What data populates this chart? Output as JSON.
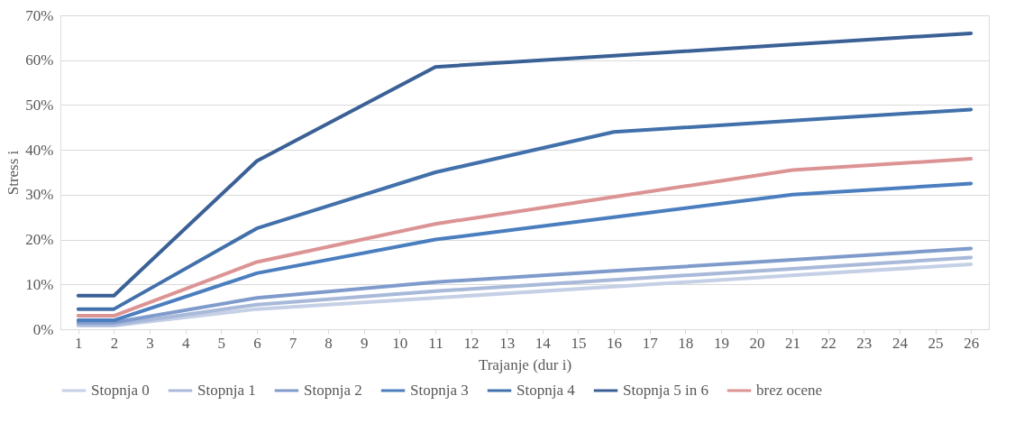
{
  "chart_data": {
    "type": "line",
    "xlabel": "Trajanje (dur i)",
    "ylabel": "Stress i",
    "x": [
      1,
      2,
      6,
      11,
      16,
      21,
      26
    ],
    "xlim": [
      0.5,
      26.5
    ],
    "xticks": [
      1,
      2,
      3,
      4,
      5,
      6,
      7,
      8,
      9,
      10,
      11,
      12,
      13,
      14,
      15,
      16,
      17,
      18,
      19,
      20,
      21,
      22,
      23,
      24,
      25,
      26
    ],
    "ylim": [
      0,
      70
    ],
    "yticks": [
      {
        "value": 0,
        "label": "0%"
      },
      {
        "value": 10,
        "label": "10%"
      },
      {
        "value": 20,
        "label": "20%"
      },
      {
        "value": 30,
        "label": "30%"
      },
      {
        "value": 40,
        "label": "40%"
      },
      {
        "value": 50,
        "label": "50%"
      },
      {
        "value": 60,
        "label": "60%"
      },
      {
        "value": 70,
        "label": "70%"
      }
    ],
    "series": [
      {
        "name": "Stopnja 0",
        "color": "#c5d0e6",
        "values": [
          0.8,
          0.8,
          4.5,
          7,
          9.5,
          12,
          14.5
        ]
      },
      {
        "name": "Stopnja 1",
        "color": "#a9b9da",
        "values": [
          1,
          1,
          5.5,
          8.5,
          11,
          13.5,
          16
        ]
      },
      {
        "name": "Stopnja 2",
        "color": "#7f9bcc",
        "values": [
          1.5,
          1.5,
          7,
          10.5,
          13,
          15.5,
          18
        ]
      },
      {
        "name": "Stopnja 3",
        "color": "#4a7ebf",
        "values": [
          2,
          2,
          12.5,
          20,
          25,
          30,
          32.5
        ]
      },
      {
        "name": "Stopnja 4",
        "color": "#4170aa",
        "values": [
          4.5,
          4.5,
          22.5,
          35,
          44,
          46.5,
          49
        ]
      },
      {
        "name": "Stopnja 5 in 6",
        "color": "#3a6096",
        "values": [
          7.5,
          7.5,
          37.5,
          58.5,
          61,
          63.5,
          66
        ]
      },
      {
        "name": "brez ocene",
        "color": "#dc9393",
        "values": [
          3,
          3,
          15,
          23.5,
          29.5,
          35.5,
          38
        ]
      }
    ],
    "grid": "y",
    "legend": "bottom",
    "marker": "none",
    "line_style": "solid"
  }
}
